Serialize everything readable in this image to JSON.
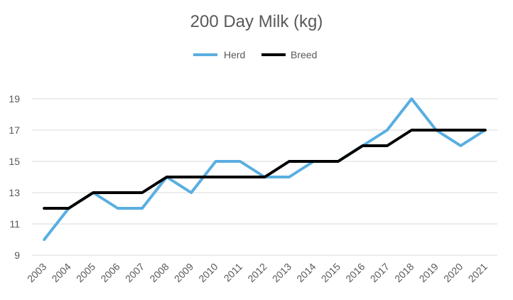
{
  "chart_data": {
    "type": "line",
    "title": "200 Day Milk (kg)",
    "xlabel": "",
    "ylabel": "",
    "categories": [
      "2003",
      "2004",
      "2005",
      "2006",
      "2007",
      "2008",
      "2009",
      "2010",
      "2011",
      "2012",
      "2013",
      "2014",
      "2015",
      "2016",
      "2017",
      "2018",
      "2019",
      "2020",
      "2021"
    ],
    "series": [
      {
        "name": "Herd",
        "color": "#5aaee0",
        "values": [
          10,
          12,
          13,
          12,
          12,
          14,
          13,
          15,
          15,
          14,
          14,
          15,
          15,
          16,
          17,
          19,
          17,
          16,
          17
        ]
      },
      {
        "name": "Breed",
        "color": "#000000",
        "values": [
          12,
          12,
          13,
          13,
          13,
          14,
          14,
          14,
          14,
          14,
          15,
          15,
          15,
          16,
          16,
          17,
          17,
          17,
          17
        ]
      }
    ],
    "ylim": [
      9,
      19
    ],
    "yticks": [
      9,
      11,
      13,
      15,
      17,
      19
    ],
    "grid": true,
    "legend_position": "top-center"
  }
}
